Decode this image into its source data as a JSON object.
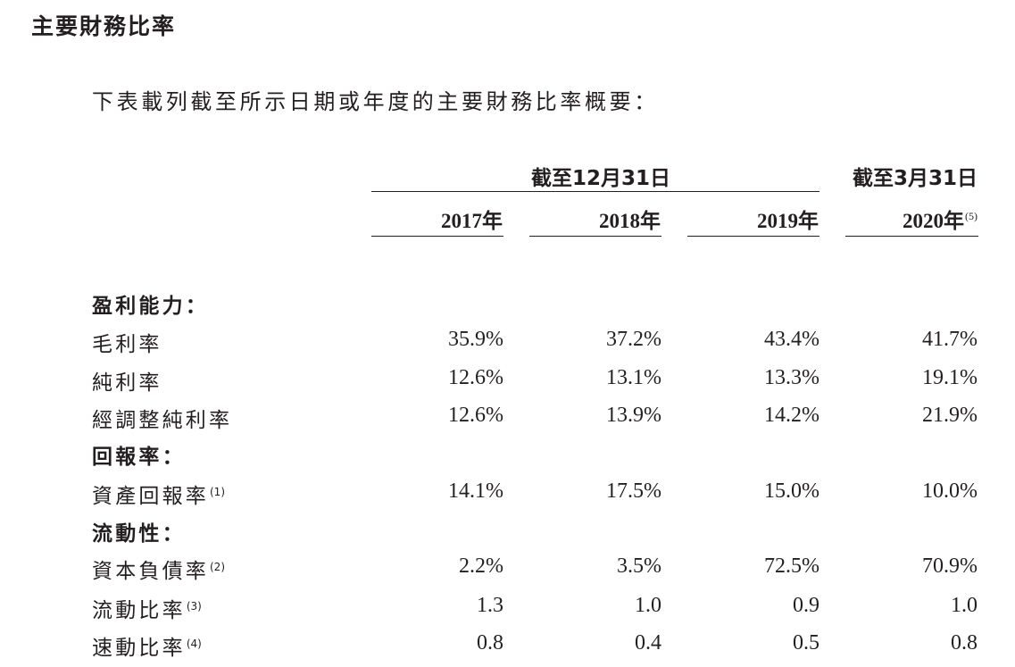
{
  "title": "主要財務比率",
  "intro": "下表載列截至所示日期或年度的主要財務比率概要：",
  "headers": {
    "group1": "截至12月31日",
    "group2": "截至3月31日",
    "years": [
      {
        "year": "2017",
        "suffix": "年",
        "note": ""
      },
      {
        "year": "2018",
        "suffix": "年",
        "note": ""
      },
      {
        "year": "2019",
        "suffix": "年",
        "note": ""
      },
      {
        "year": "2020",
        "suffix": "年",
        "note": "(5)"
      }
    ]
  },
  "rows": [
    {
      "label": "盈利能力：",
      "section": true,
      "note": "",
      "values": [
        "",
        "",
        "",
        ""
      ]
    },
    {
      "label": "毛利率",
      "section": false,
      "note": "",
      "values": [
        "35.9%",
        "37.2%",
        "43.4%",
        "41.7%"
      ]
    },
    {
      "label": "純利率",
      "section": false,
      "note": "",
      "values": [
        "12.6%",
        "13.1%",
        "13.3%",
        "19.1%"
      ]
    },
    {
      "label": "經調整純利率",
      "section": false,
      "note": "",
      "values": [
        "12.6%",
        "13.9%",
        "14.2%",
        "21.9%"
      ]
    },
    {
      "label": "回報率：",
      "section": true,
      "note": "",
      "values": [
        "",
        "",
        "",
        ""
      ]
    },
    {
      "label": "資產回報率",
      "section": false,
      "note": "(1)",
      "values": [
        "14.1%",
        "17.5%",
        "15.0%",
        "10.0%"
      ]
    },
    {
      "label": "流動性：",
      "section": true,
      "note": "",
      "values": [
        "",
        "",
        "",
        ""
      ]
    },
    {
      "label": "資本負債率",
      "section": false,
      "note": "(2)",
      "values": [
        "2.2%",
        "3.5%",
        "72.5%",
        "70.9%"
      ]
    },
    {
      "label": "流動比率",
      "section": false,
      "note": "(3)",
      "values": [
        "1.3",
        "1.0",
        "0.9",
        "1.0"
      ]
    },
    {
      "label": "速動比率",
      "section": false,
      "note": "(4)",
      "values": [
        "0.8",
        "0.4",
        "0.5",
        "0.8"
      ]
    }
  ]
}
